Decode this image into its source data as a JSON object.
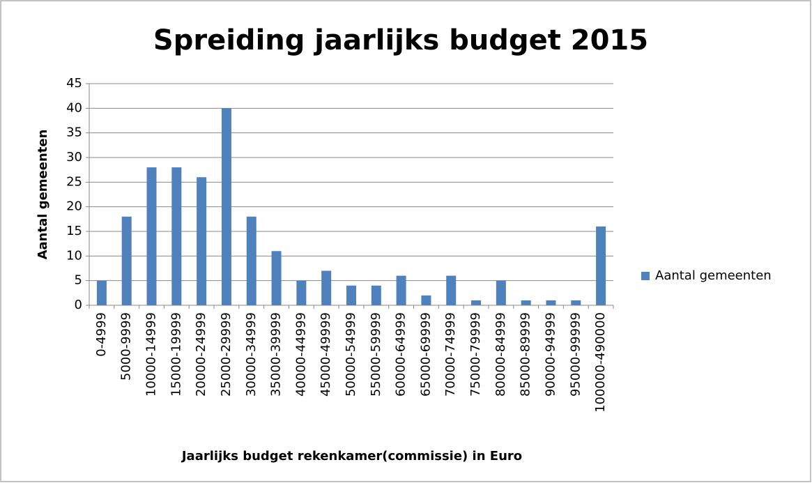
{
  "chart_data": {
    "type": "bar",
    "title": "Spreiding jaarlijks budget 2015",
    "x_label": "Jaarlijks budget rekenkamer(commissie) in Euro",
    "y_label": "Aantal gemeenten",
    "categories": [
      "0-4999",
      "5000-9999",
      "10000-14999",
      "15000-19999",
      "20000-24999",
      "25000-29999",
      "30000-34999",
      "35000-39999",
      "40000-44999",
      "45000-49999",
      "50000-54999",
      "55000-59999",
      "60000-64999",
      "65000-69999",
      "70000-74999",
      "75000-79999",
      "80000-84999",
      "85000-89999",
      "90000-94999",
      "95000-99999",
      "100000-490000"
    ],
    "series": [
      {
        "name": "Aantal gemeenten",
        "color": "#4f81bd",
        "values": [
          5,
          18,
          28,
          28,
          26,
          40,
          18,
          11,
          5,
          7,
          4,
          4,
          6,
          2,
          6,
          1,
          5,
          1,
          1,
          1,
          16
        ]
      }
    ],
    "ylim": [
      0,
      45
    ],
    "yticks": [
      0,
      5,
      10,
      15,
      20,
      25,
      30,
      35,
      40,
      45
    ],
    "grid": true,
    "legend": "right"
  }
}
